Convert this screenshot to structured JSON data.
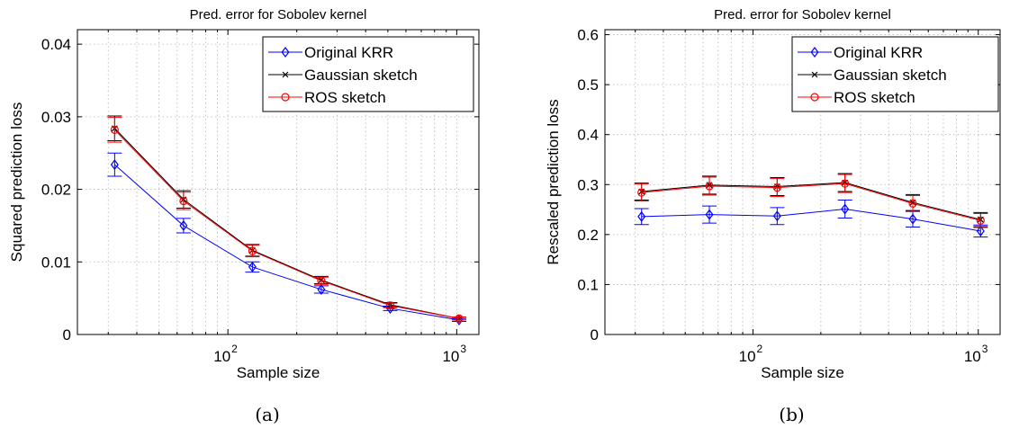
{
  "chart_data": [
    {
      "type": "line",
      "title": "Pred. error for Sobolev kernel",
      "xlabel": "Sample size",
      "ylabel": "Squared prediction loss",
      "caption": "(a)",
      "xscale": "log",
      "x": [
        32,
        64,
        128,
        256,
        512,
        1024
      ],
      "xlim": [
        22,
        1250
      ],
      "xticks": [
        100,
        1000
      ],
      "xtick_labels": [
        {
          "base": "10",
          "exp": "2"
        },
        {
          "base": "10",
          "exp": "3"
        }
      ],
      "ylim": [
        0,
        0.042
      ],
      "yticks": [
        0,
        0.01,
        0.02,
        0.03,
        0.04
      ],
      "ytick_labels": [
        "0",
        "0.01",
        "0.02",
        "0.03",
        "0.04"
      ],
      "grid": true,
      "legend_position": "top-right",
      "series": [
        {
          "name": "Original KRR",
          "color": "#0000ff",
          "marker": "diamond",
          "values": [
            0.0234,
            0.015,
            0.0093,
            0.0062,
            0.0036,
            0.002
          ],
          "error": [
            0.0016,
            0.001,
            0.0007,
            0.0005,
            0.0003,
            0.0002
          ]
        },
        {
          "name": "Gaussian sketch",
          "color": "#000000",
          "marker": "x",
          "values": [
            0.0284,
            0.0186,
            0.0116,
            0.0075,
            0.0041,
            0.0022
          ],
          "error": [
            0.0017,
            0.0012,
            0.0008,
            0.0005,
            0.0003,
            0.0002
          ]
        },
        {
          "name": "ROS sketch",
          "color": "#ff0000",
          "marker": "circle",
          "values": [
            0.0282,
            0.0184,
            0.0115,
            0.0074,
            0.004,
            0.0022
          ],
          "error": [
            0.0017,
            0.0012,
            0.0008,
            0.0005,
            0.0003,
            0.0002
          ]
        }
      ]
    },
    {
      "type": "line",
      "title": "Pred. error for Sobolev kernel",
      "xlabel": "Sample size",
      "ylabel": "Rescaled prediction loss",
      "caption": "(b)",
      "xscale": "log",
      "x": [
        32,
        64,
        128,
        256,
        512,
        1024
      ],
      "xlim": [
        22,
        1250
      ],
      "xticks": [
        100,
        1000
      ],
      "xtick_labels": [
        {
          "base": "10",
          "exp": "2"
        },
        {
          "base": "10",
          "exp": "3"
        }
      ],
      "ylim": [
        0,
        0.61
      ],
      "yticks": [
        0,
        0.1,
        0.2,
        0.3,
        0.4,
        0.5,
        0.6
      ],
      "ytick_labels": [
        "0",
        "0.1",
        "0.2",
        "0.3",
        "0.4",
        "0.5",
        "0.6"
      ],
      "grid": true,
      "legend_position": "top-right",
      "series": [
        {
          "name": "Original KRR",
          "color": "#0000ff",
          "marker": "diamond",
          "values": [
            0.236,
            0.24,
            0.237,
            0.251,
            0.231,
            0.207
          ],
          "error": [
            0.016,
            0.017,
            0.017,
            0.018,
            0.016,
            0.012
          ]
        },
        {
          "name": "Gaussian sketch",
          "color": "#000000",
          "marker": "x",
          "values": [
            0.286,
            0.299,
            0.296,
            0.304,
            0.264,
            0.23
          ],
          "error": [
            0.017,
            0.018,
            0.018,
            0.018,
            0.016,
            0.014
          ]
        },
        {
          "name": "ROS sketch",
          "color": "#ff0000",
          "marker": "circle",
          "values": [
            0.284,
            0.297,
            0.294,
            0.302,
            0.262,
            0.228
          ],
          "error": [
            0.017,
            0.018,
            0.018,
            0.018,
            0.016,
            0.014
          ]
        }
      ]
    }
  ]
}
